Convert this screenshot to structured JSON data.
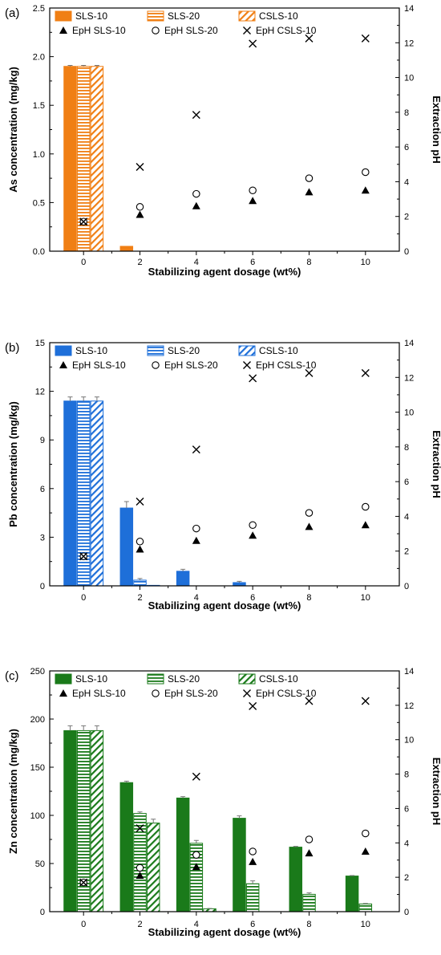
{
  "chart_data": [
    {
      "type": "bar",
      "panel_label": "(a)",
      "x": [
        0,
        2,
        4,
        6,
        8,
        10
      ],
      "xlabel": "Stabilizing agent dosage (wt%)",
      "ylabel": "As concentration (mg/kg)",
      "y2label": "Extraction pH",
      "ylim": [
        0,
        2.5
      ],
      "yticks": [
        0.0,
        0.5,
        1.0,
        1.5,
        2.0,
        2.5
      ],
      "ytick_labels": [
        "0.0",
        "0.5",
        "1.0",
        "1.5",
        "2.0",
        "2.5"
      ],
      "y2lim": [
        0,
        14
      ],
      "y2ticks": [
        0,
        2,
        4,
        6,
        8,
        10,
        12,
        14
      ],
      "color": "#f07f14",
      "grid": false,
      "legend_placement": "top-left",
      "series": [
        {
          "name": "SLS-10",
          "pattern": "solid",
          "values": [
            1.9,
            0.05,
            0,
            0,
            0,
            0
          ],
          "errors": [
            0.01,
            0,
            0,
            0,
            0,
            0
          ]
        },
        {
          "name": "SLS-20",
          "pattern": "horizontal",
          "values": [
            1.9,
            0,
            0,
            0,
            0,
            0
          ],
          "errors": [
            0.01,
            0,
            0,
            0,
            0,
            0
          ]
        },
        {
          "name": "CSLS-10",
          "pattern": "diagonal",
          "values": [
            1.9,
            0,
            0,
            0,
            0,
            0
          ],
          "errors": [
            0.01,
            0,
            0,
            0,
            0,
            0
          ]
        }
      ],
      "ph_series": [
        {
          "name": "EpH SLS-10",
          "marker": "triangle",
          "values": [
            1.7,
            2.1,
            2.6,
            2.9,
            3.4,
            3.5
          ]
        },
        {
          "name": "EpH SLS-20",
          "marker": "circle",
          "values": [
            1.7,
            2.55,
            3.3,
            3.5,
            4.2,
            4.55
          ]
        },
        {
          "name": "EpH CSLS-10",
          "marker": "cross",
          "values": [
            1.7,
            4.85,
            7.85,
            11.95,
            12.25,
            12.25
          ]
        }
      ]
    },
    {
      "type": "bar",
      "panel_label": "(b)",
      "x": [
        0,
        2,
        4,
        6,
        8,
        10
      ],
      "xlabel": "Stabilizing agent dosage (wt%)",
      "ylabel": "Pb concentration (mg/kg)",
      "y2label": "Extraction pH",
      "ylim": [
        0,
        15
      ],
      "yticks": [
        0,
        3,
        6,
        9,
        12,
        15
      ],
      "ytick_labels": [
        "0",
        "3",
        "6",
        "9",
        "12",
        "15"
      ],
      "y2lim": [
        0,
        14
      ],
      "y2ticks": [
        0,
        2,
        4,
        6,
        8,
        10,
        12,
        14
      ],
      "color": "#1e6fd9",
      "grid": false,
      "legend_placement": "top-left",
      "series": [
        {
          "name": "SLS-10",
          "pattern": "solid",
          "values": [
            11.4,
            4.8,
            0.9,
            0.2,
            0,
            0
          ],
          "errors": [
            0.25,
            0.4,
            0.12,
            0.08,
            0,
            0
          ]
        },
        {
          "name": "SLS-20",
          "pattern": "horizontal",
          "values": [
            11.4,
            0.35,
            0,
            0,
            0,
            0
          ],
          "errors": [
            0.25,
            0.1,
            0,
            0,
            0,
            0
          ]
        },
        {
          "name": "CSLS-10",
          "pattern": "diagonal",
          "values": [
            11.4,
            0.03,
            0,
            0,
            0,
            0
          ],
          "errors": [
            0.25,
            0,
            0,
            0,
            0,
            0
          ]
        }
      ],
      "ph_series": [
        {
          "name": "EpH SLS-10",
          "marker": "triangle",
          "values": [
            1.7,
            2.1,
            2.6,
            2.9,
            3.4,
            3.5
          ]
        },
        {
          "name": "EpH SLS-20",
          "marker": "circle",
          "values": [
            1.7,
            2.55,
            3.3,
            3.5,
            4.2,
            4.55
          ]
        },
        {
          "name": "EpH CSLS-10",
          "marker": "cross",
          "values": [
            1.7,
            4.85,
            7.85,
            11.95,
            12.25,
            12.25
          ]
        }
      ]
    },
    {
      "type": "bar",
      "panel_label": "(c)",
      "x": [
        0,
        2,
        4,
        6,
        8,
        10
      ],
      "xlabel": "Stabilizing agent dosage (wt%)",
      "ylabel": "Zn concentration (mg/kg)",
      "y2label": "Extraction pH",
      "ylim": [
        0,
        250
      ],
      "yticks": [
        0,
        50,
        100,
        150,
        200,
        250
      ],
      "ytick_labels": [
        "0",
        "50",
        "100",
        "150",
        "200",
        "250"
      ],
      "y2lim": [
        0,
        14
      ],
      "y2ticks": [
        0,
        2,
        4,
        6,
        8,
        10,
        12,
        14
      ],
      "color": "#1a7a1a",
      "grid": false,
      "legend_placement": "top-left",
      "series": [
        {
          "name": "SLS-10",
          "pattern": "solid",
          "values": [
            188,
            134,
            118,
            97,
            67,
            37
          ],
          "errors": [
            5,
            1.5,
            1.5,
            2.5,
            0.8,
            0.5
          ]
        },
        {
          "name": "SLS-20",
          "pattern": "horizontal",
          "values": [
            188,
            102,
            71,
            29,
            18,
            8
          ],
          "errors": [
            5,
            1.5,
            3,
            3,
            1.5,
            0.5
          ]
        },
        {
          "name": "CSLS-10",
          "pattern": "diagonal",
          "values": [
            188,
            92,
            3,
            0,
            0,
            0
          ],
          "errors": [
            5,
            4,
            0.3,
            0,
            0,
            0
          ]
        }
      ],
      "ph_series": [
        {
          "name": "EpH SLS-10",
          "marker": "triangle",
          "values": [
            1.7,
            2.1,
            2.6,
            2.9,
            3.4,
            3.5
          ]
        },
        {
          "name": "EpH SLS-20",
          "marker": "circle",
          "values": [
            1.7,
            2.55,
            3.3,
            3.5,
            4.2,
            4.55
          ]
        },
        {
          "name": "EpH CSLS-10",
          "marker": "cross",
          "values": [
            1.7,
            4.85,
            7.85,
            11.95,
            12.25,
            12.25
          ]
        }
      ]
    }
  ]
}
